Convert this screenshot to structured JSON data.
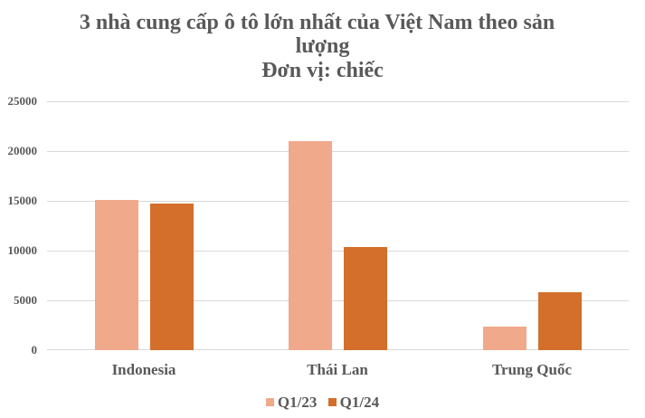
{
  "chart_data": {
    "type": "bar",
    "title": "3 nhà cung cấp ô tô lớn nhất của Việt Nam theo sản lượng",
    "title_lines": [
      "3 nhà cung cấp ô tô lớn nhất của Việt Nam theo sản",
      "lượng",
      "Đơn vị: chiếc"
    ],
    "subtitle": "Đơn vị: chiếc",
    "xlabel": "",
    "ylabel": "",
    "categories": [
      "Indonesia",
      "Thái Lan",
      "Trung Quốc"
    ],
    "series": [
      {
        "name": "Q1/23",
        "color": "#F0A98A",
        "values": [
          15100,
          21000,
          2400
        ]
      },
      {
        "name": "Q1/24",
        "color": "#D36F2B",
        "values": [
          14750,
          10400,
          5800
        ]
      }
    ],
    "ylim": [
      0,
      25000
    ],
    "yticks": [
      "0",
      "5000",
      "10000",
      "15000",
      "20000",
      "25000"
    ],
    "grid": true,
    "legend_position": "bottom"
  }
}
